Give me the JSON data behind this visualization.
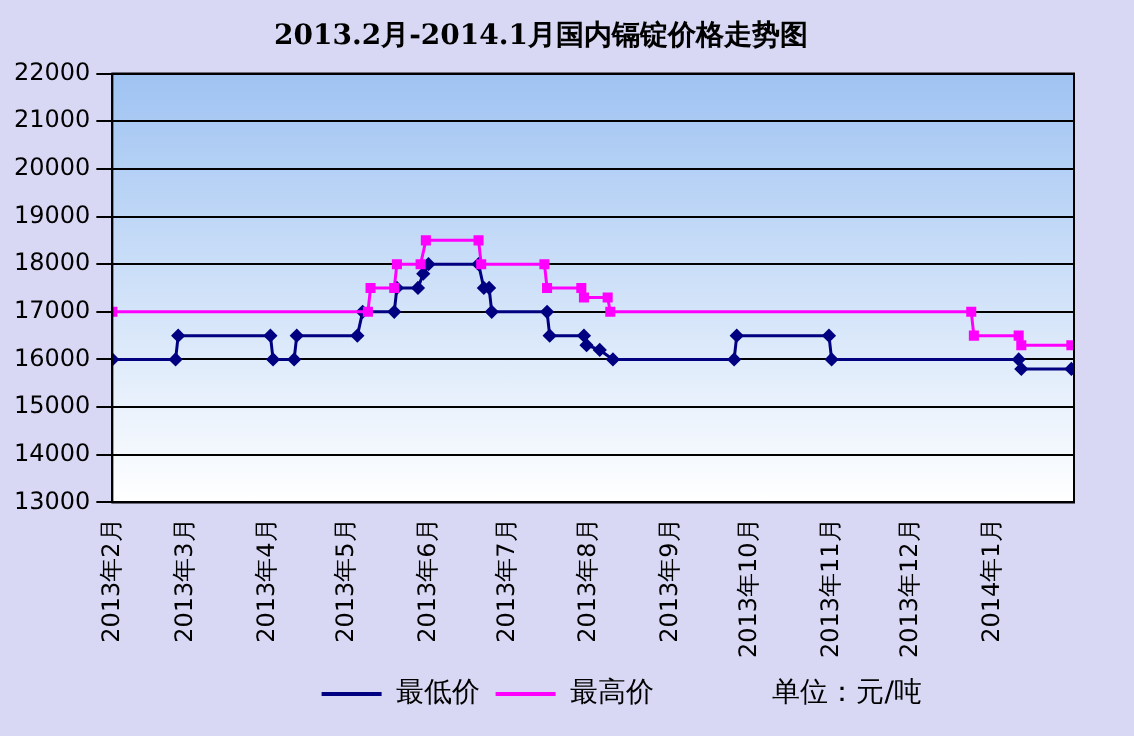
{
  "chart_data": {
    "type": "line",
    "title": "2013.2月-2014.1月国内镉锭价格走势图",
    "xlim": [
      "2013-02-01",
      "2014-02-01"
    ],
    "xticks": [
      {
        "value": "2013-02-01",
        "label": "2013年2月"
      },
      {
        "value": "2013-03-01",
        "label": "2013年3月"
      },
      {
        "value": "2013-04-01",
        "label": "2013年4月"
      },
      {
        "value": "2013-05-01",
        "label": "2013年5月"
      },
      {
        "value": "2013-06-01",
        "label": "2013年6月"
      },
      {
        "value": "2013-07-01",
        "label": "2013年7月"
      },
      {
        "value": "2013-08-01",
        "label": "2013年8月"
      },
      {
        "value": "2013-09-01",
        "label": "2013年9月"
      },
      {
        "value": "2013-10-01",
        "label": "2013年10月"
      },
      {
        "value": "2013-11-01",
        "label": "2013年11月"
      },
      {
        "value": "2013-12-01",
        "label": "2013年12月"
      },
      {
        "value": "2014-01-01",
        "label": "2014年1月"
      }
    ],
    "ylim": [
      13000,
      22000
    ],
    "yticks": [
      13000,
      14000,
      15000,
      16000,
      17000,
      18000,
      19000,
      20000,
      21000,
      22000
    ],
    "grid": "y",
    "legend": "bottom",
    "annotations": [
      "单位：元/吨"
    ],
    "series": [
      {
        "name": "最低价",
        "color": "#000080",
        "marker": "diamond",
        "x": [
          "2013-02-01",
          "2013-02-25",
          "2013-02-26",
          "2013-04-02",
          "2013-04-03",
          "2013-04-11",
          "2013-04-12",
          "2013-05-05",
          "2013-05-07",
          "2013-05-19",
          "2013-05-20",
          "2013-05-28",
          "2013-05-30",
          "2013-06-01",
          "2013-06-20",
          "2013-06-22",
          "2013-06-24",
          "2013-06-25",
          "2013-07-16",
          "2013-07-17",
          "2013-07-30",
          "2013-07-31",
          "2013-08-05",
          "2013-08-10",
          "2013-09-25",
          "2013-09-26",
          "2013-10-31",
          "2013-11-01",
          "2014-01-11",
          "2014-01-12",
          "2014-01-31"
        ],
        "values": [
          16000,
          16000,
          16500,
          16500,
          16000,
          16000,
          16500,
          16500,
          17000,
          17000,
          17500,
          17500,
          17800,
          18000,
          18000,
          17500,
          17500,
          17000,
          17000,
          16500,
          16500,
          16300,
          16200,
          16000,
          16000,
          16500,
          16500,
          16000,
          16000,
          15800,
          15800
        ]
      },
      {
        "name": "最高价",
        "color": "#ff00ff",
        "marker": "square",
        "x": [
          "2013-02-01",
          "2013-05-09",
          "2013-05-10",
          "2013-05-19",
          "2013-05-20",
          "2013-05-29",
          "2013-05-31",
          "2013-06-20",
          "2013-06-21",
          "2013-07-15",
          "2013-07-16",
          "2013-07-29",
          "2013-07-30",
          "2013-08-08",
          "2013-08-09",
          "2013-12-24",
          "2013-12-25",
          "2014-01-11",
          "2014-01-12",
          "2014-01-31"
        ],
        "values": [
          17000,
          17000,
          17500,
          17500,
          18000,
          18000,
          18500,
          18500,
          18000,
          18000,
          17500,
          17500,
          17300,
          17300,
          17000,
          17000,
          16500,
          16500,
          16300,
          16300
        ]
      }
    ]
  }
}
